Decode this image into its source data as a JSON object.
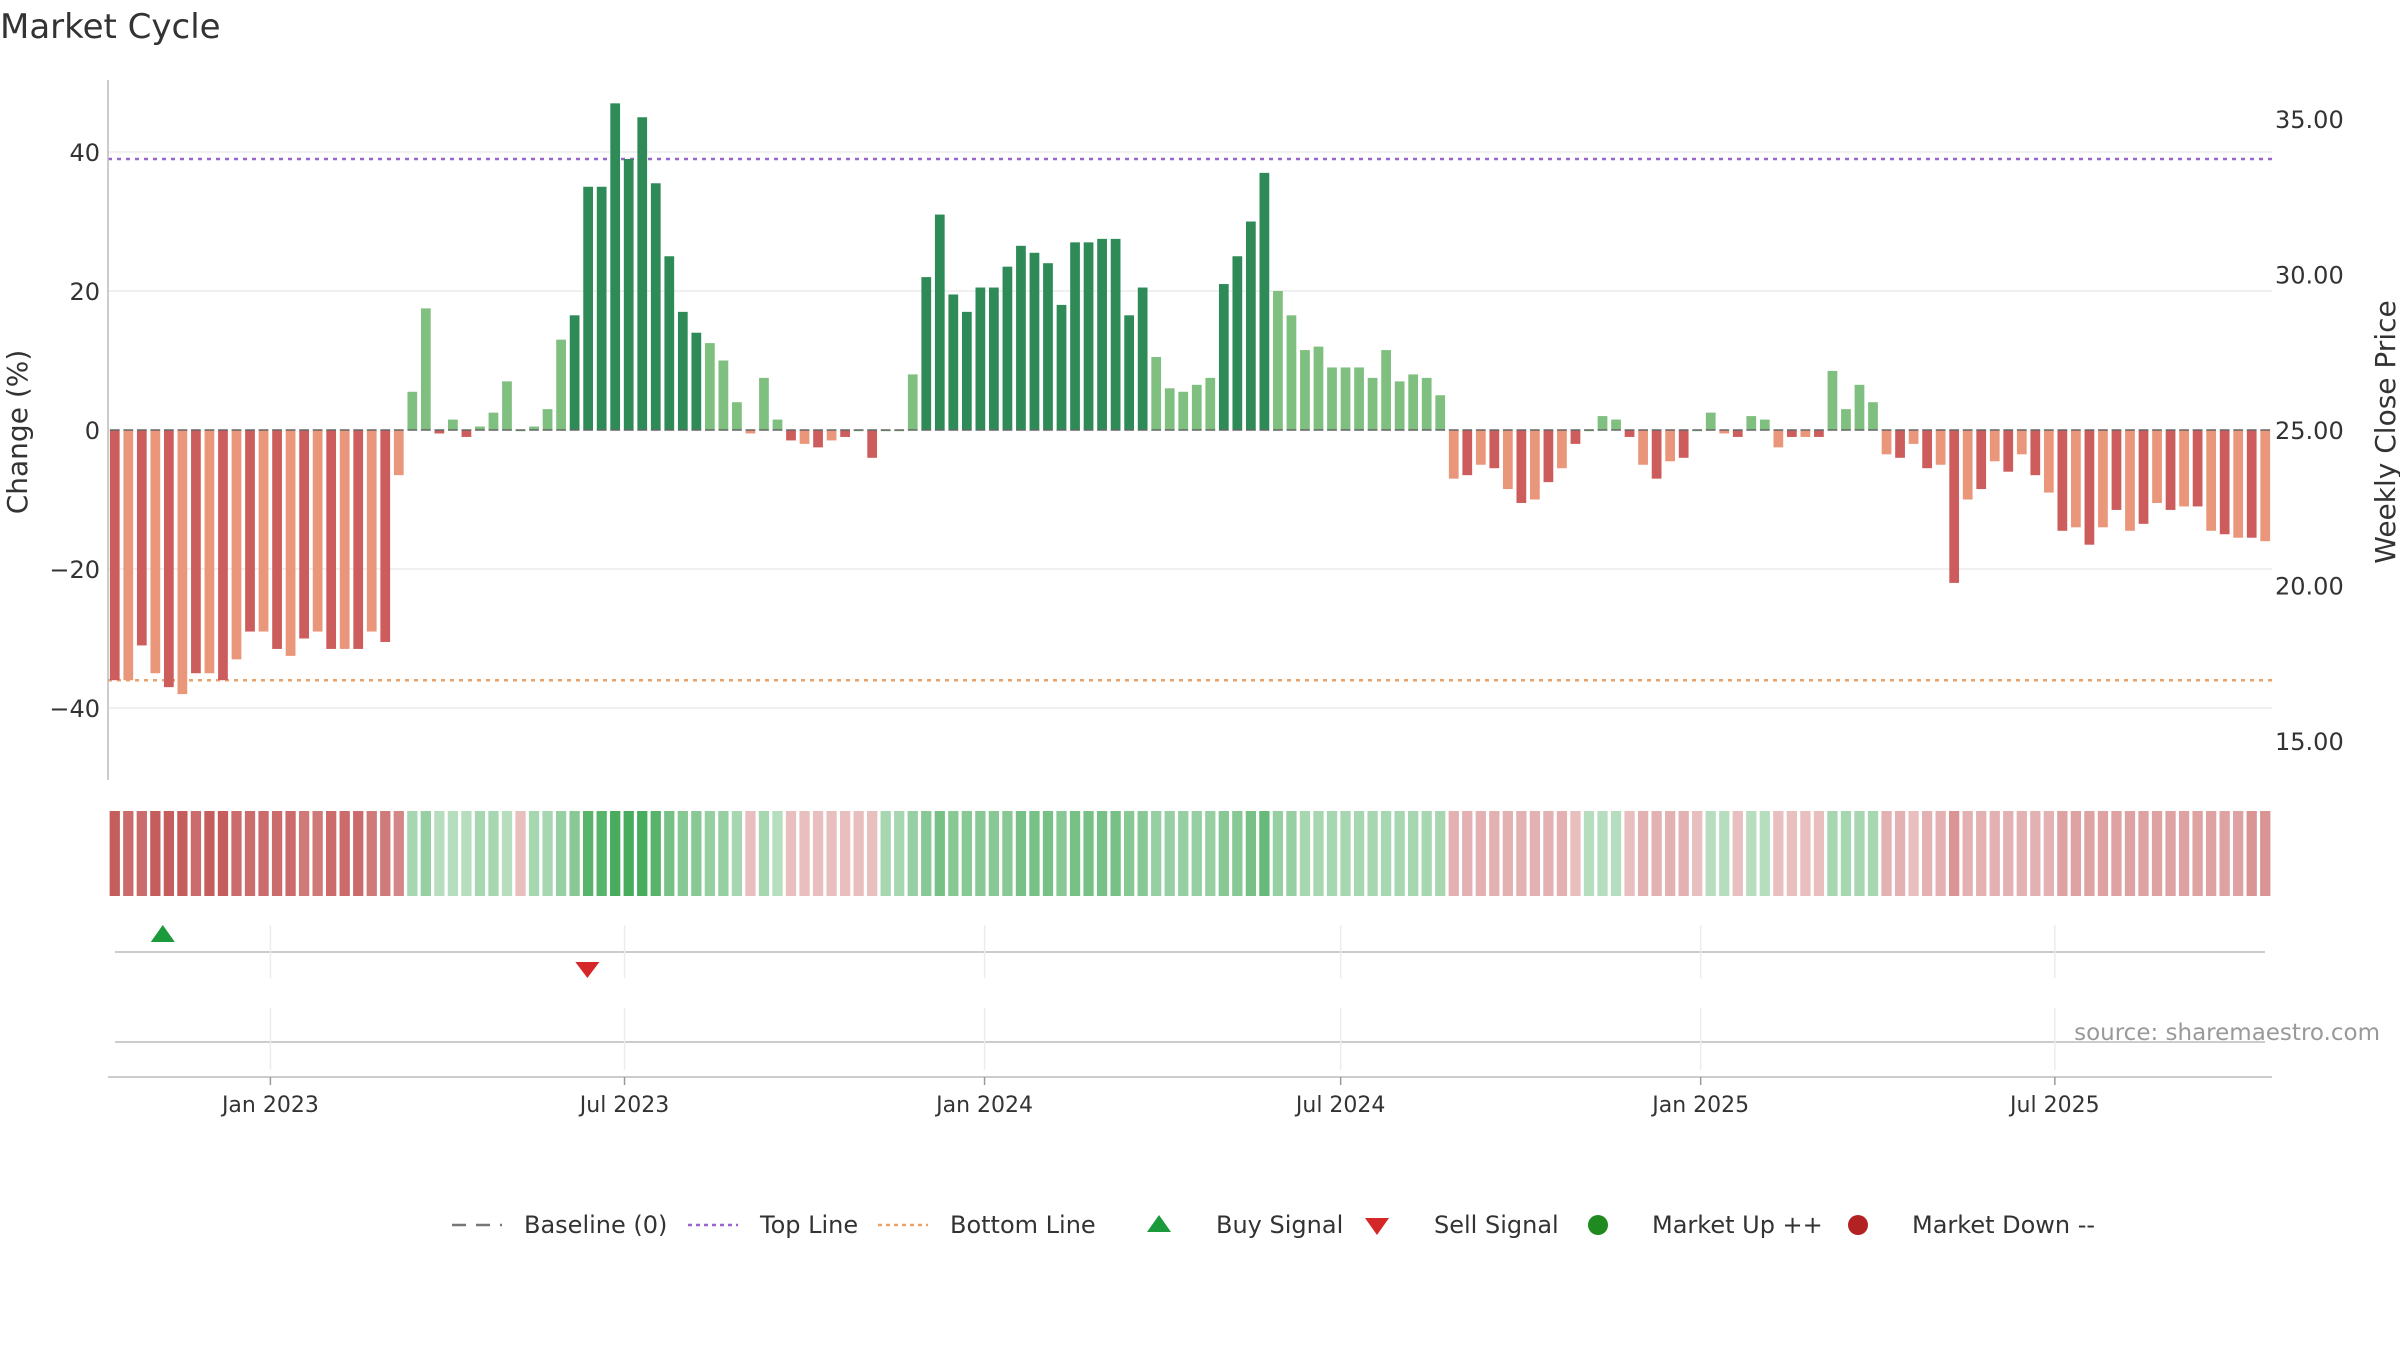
{
  "chart_data": {
    "type": "bar",
    "title": "Market Cycle",
    "ylabel": "Change (%)",
    "y2label": "Weekly Close Price",
    "ylim": [
      -50,
      50
    ],
    "y2lim": [
      12.5,
      37.5
    ],
    "yticks": [
      "40",
      "20",
      "0",
      "−20",
      "−40"
    ],
    "ytick_values": [
      40,
      20,
      0,
      -20,
      -40
    ],
    "y2ticks": [
      "35.00",
      "30.00",
      "25.00",
      "20.00",
      "15.00"
    ],
    "y2tick_values": [
      35,
      30,
      25,
      20,
      15
    ],
    "grid": true,
    "x_start": "2022-10-10",
    "x_end": "2025-10-20",
    "xticks": [
      {
        "label": "Jan 2023",
        "date": "2023-01-01"
      },
      {
        "label": "Jul 2023",
        "date": "2023-07-01"
      },
      {
        "label": "Jan 2024",
        "date": "2024-01-01"
      },
      {
        "label": "Jul 2024",
        "date": "2024-07-01"
      },
      {
        "label": "Jan 2025",
        "date": "2025-01-01"
      },
      {
        "label": "Jul 2025",
        "date": "2025-07-01"
      }
    ],
    "top_line": 39,
    "bottom_line": -36,
    "bar_colors": {
      "strong_up": "#2e8b57",
      "up": "#7fbf7f",
      "strong_down": "#cd5c5c",
      "down": "#e9967a"
    },
    "values": [
      -36,
      -36,
      -31,
      -35,
      -37,
      -38,
      -35,
      -35,
      -36,
      -33,
      -29,
      -29,
      -31.5,
      -32.5,
      -30,
      -29,
      -31.5,
      -31.5,
      -31.5,
      -29,
      -30.5,
      -6.5,
      5.5,
      17.5,
      -0.5,
      1.5,
      -1,
      0.5,
      2.5,
      7,
      0,
      0.5,
      3,
      13,
      16.5,
      35,
      35,
      47,
      39,
      45,
      35.5,
      25,
      17,
      14,
      12.5,
      10,
      4,
      -0.5,
      7.5,
      1.5,
      -1.5,
      -2,
      -2.5,
      -1.5,
      -1,
      0,
      -4,
      0,
      0,
      8,
      22,
      31,
      19.5,
      17,
      20.5,
      20.5,
      23.5,
      26.5,
      25.5,
      24,
      18,
      27,
      27,
      27.5,
      27.5,
      16.5,
      20.5,
      10.5,
      6,
      5.5,
      6.5,
      7.5,
      21,
      25,
      30,
      37,
      20,
      16.5,
      11.5,
      12,
      9,
      9,
      9,
      7.5,
      11.5,
      7,
      8,
      7.5,
      5,
      -7,
      -6.5,
      -5,
      -5.5,
      -8.5,
      -10.5,
      -10,
      -7.5,
      -5.5,
      -2,
      0,
      2,
      1.5,
      -1,
      -5,
      -7,
      -4.5,
      -4,
      0,
      2.5,
      -0.5,
      -1,
      2,
      1.5,
      -2.5,
      -1,
      -1,
      -1,
      8.5,
      3,
      6.5,
      4,
      -3.5,
      -4,
      -2,
      -5.5,
      -5,
      -22,
      -10,
      -8.5,
      -4.5,
      -6,
      -3.5,
      -6.5,
      -9,
      -14.5,
      -14,
      -16.5,
      -14,
      -11.5,
      -14.5,
      -13.5,
      -10.5,
      -11.5,
      -11,
      -11,
      -14.5,
      -15,
      -15.5,
      -15.5,
      -16
    ],
    "intensity": [
      -0.9,
      -0.8,
      -0.8,
      -0.9,
      -0.9,
      -0.9,
      -0.8,
      -0.9,
      -0.9,
      -0.8,
      -0.8,
      -0.8,
      -0.8,
      -0.8,
      -0.7,
      -0.7,
      -0.8,
      -0.8,
      -0.8,
      -0.7,
      -0.7,
      -0.6,
      0.3,
      0.4,
      0.2,
      0.2,
      0.2,
      0.3,
      0.3,
      0.2,
      -0.2,
      0.3,
      0.3,
      0.4,
      0.5,
      0.8,
      0.8,
      0.9,
      0.9,
      0.9,
      0.8,
      0.6,
      0.5,
      0.5,
      0.4,
      0.4,
      0.3,
      -0.2,
      0.3,
      0.2,
      -0.2,
      -0.2,
      -0.2,
      -0.2,
      -0.2,
      -0.2,
      -0.2,
      0.3,
      0.3,
      0.4,
      0.5,
      0.6,
      0.5,
      0.5,
      0.5,
      0.5,
      0.5,
      0.6,
      0.6,
      0.6,
      0.5,
      0.6,
      0.6,
      0.6,
      0.6,
      0.5,
      0.5,
      0.4,
      0.4,
      0.4,
      0.4,
      0.4,
      0.5,
      0.5,
      0.6,
      0.7,
      0.4,
      0.4,
      0.3,
      0.3,
      0.3,
      0.3,
      0.3,
      0.3,
      0.3,
      0.3,
      0.3,
      0.3,
      0.3,
      -0.3,
      -0.3,
      -0.3,
      -0.3,
      -0.3,
      -0.3,
      -0.3,
      -0.3,
      -0.3,
      -0.2,
      0.2,
      0.2,
      0.2,
      -0.2,
      -0.3,
      -0.3,
      -0.3,
      -0.3,
      -0.2,
      0.2,
      0.2,
      -0.2,
      0.2,
      0.2,
      -0.2,
      -0.2,
      -0.2,
      -0.2,
      0.3,
      0.3,
      0.3,
      0.3,
      -0.3,
      -0.3,
      -0.2,
      -0.3,
      -0.3,
      -0.5,
      -0.3,
      -0.3,
      -0.3,
      -0.3,
      -0.3,
      -0.3,
      -0.3,
      -0.4,
      -0.4,
      -0.4,
      -0.4,
      -0.4,
      -0.4,
      -0.4,
      -0.4,
      -0.4,
      -0.4,
      -0.4,
      -0.4,
      -0.4,
      -0.4,
      -0.5,
      -0.5
    ],
    "buy_signals": [
      "2022-11-07"
    ],
    "sell_signals": [
      "2023-06-12"
    ],
    "legend": [
      {
        "label": "Baseline (0)",
        "symbol": "dash",
        "color": "#777777"
      },
      {
        "label": "Top Line",
        "symbol": "dotted",
        "color": "#9966cc"
      },
      {
        "label": "Bottom Line",
        "symbol": "dotted",
        "color": "#e9a36a"
      },
      {
        "label": "Buy Signal",
        "symbol": "triangle-up",
        "color": "#1a9a3a"
      },
      {
        "label": "Sell Signal",
        "symbol": "triangle-down",
        "color": "#d62728"
      },
      {
        "label": "Market Up ++",
        "symbol": "circle",
        "color": "#1f8a1f"
      },
      {
        "label": "Market Down --",
        "symbol": "circle",
        "color": "#b22222"
      }
    ],
    "legend_position": "bottom",
    "source": "source: sharemaestro.com"
  }
}
